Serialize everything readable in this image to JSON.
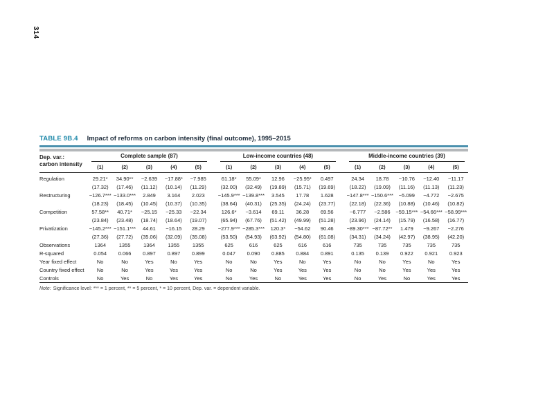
{
  "page": {
    "number": "314"
  },
  "colors": {
    "accent": "#1b87a8",
    "title": "#1d2b3a",
    "rule": "#4a90ad",
    "bar": "#b4b7ba"
  },
  "table": {
    "label": "TABLE 9B.4",
    "title": "Impact of reforms on carbon intensity (final outcome), 1995–2015",
    "dep_var_line1": "Dep. var.:",
    "dep_var_line2": "carbon intensity",
    "groups": [
      {
        "label": "Complete sample (87)",
        "columns": [
          "(1)",
          "(2)",
          "(3)",
          "(4)",
          "(5)"
        ]
      },
      {
        "label": "Low-income countries (48)",
        "columns": [
          "(1)",
          "(2)",
          "(3)",
          "(4)",
          "(5)"
        ]
      },
      {
        "label": "Middle-income countries (39)",
        "columns": [
          "(1)",
          "(2)",
          "(3)",
          "(4)",
          "(5)"
        ]
      }
    ],
    "rows": [
      {
        "label": "Regulation",
        "values": [
          "29.21*",
          "34.90**",
          "−2.639",
          "−17.88*",
          "−7.985",
          "61.18*",
          "55.09*",
          "12.96",
          "−25.95*",
          "0.497",
          "24.34",
          "18.78",
          "−10.76",
          "−12.40",
          "−11.17"
        ]
      },
      {
        "label": "",
        "values": [
          "(17.32)",
          "(17.46)",
          "(11.12)",
          "(10.14)",
          "(11.29)",
          "(32.00)",
          "(32.49)",
          "(19.89)",
          "(15.71)",
          "(19.69)",
          "(18.22)",
          "(19.09)",
          "(11.16)",
          "(11.13)",
          "(11.23)"
        ]
      },
      {
        "label": "Restructuring",
        "values": [
          "−126.7***",
          "−133.0***",
          "2.849",
          "3.164",
          "2.023",
          "−145.9***",
          "−139.8***",
          "3.545",
          "17.78",
          "1.628",
          "−147.8***",
          "−150.6***",
          "−5.099",
          "−4.772",
          "−2.675"
        ]
      },
      {
        "label": "",
        "values": [
          "(18.23)",
          "(18.45)",
          "(10.45)",
          "(10.37)",
          "(10.35)",
          "(38.64)",
          "(40.31)",
          "(25.35)",
          "(24.24)",
          "(23.77)",
          "(22.18)",
          "(22.36)",
          "(10.88)",
          "(10.46)",
          "(10.82)"
        ]
      },
      {
        "label": "Competition",
        "values": [
          "57.58**",
          "40.71*",
          "−25.15",
          "−25.33",
          "−22.34",
          "126.6*",
          "−3.614",
          "69.11",
          "36.28",
          "69.56",
          "−6.777",
          "−2.586",
          "−59.15***",
          "−54.66***",
          "−58.99***"
        ]
      },
      {
        "label": "",
        "values": [
          "(23.84)",
          "(23.48)",
          "(18.74)",
          "(18.64)",
          "(19.07)",
          "(65.94)",
          "(67.76)",
          "(51.42)",
          "(49.99)",
          "(51.28)",
          "(23.96)",
          "(24.14)",
          "(15.79)",
          "(16.58)",
          "(16.77)"
        ]
      },
      {
        "label": "Privatization",
        "values": [
          "−145.2***",
          "−151.1***",
          "44.61",
          "−16.15",
          "28.29",
          "−277.9***",
          "−285.3***",
          "120.3*",
          "−54.62",
          "90.46",
          "−89.30***",
          "−87.72**",
          "1.479",
          "−9.267",
          "−2.276"
        ]
      },
      {
        "label": "",
        "values": [
          "(27.36)",
          "(27.72)",
          "(35.06)",
          "(32.09)",
          "(35.08)",
          "(53.50)",
          "(54.93)",
          "(63.92)",
          "(54.80)",
          "(61.08)",
          "(34.31)",
          "(34.24)",
          "(42.97)",
          "(38.95)",
          "(42.20)"
        ]
      },
      {
        "label": "Observations",
        "values": [
          "1364",
          "1355",
          "1364",
          "1355",
          "1355",
          "625",
          "616",
          "625",
          "616",
          "616",
          "735",
          "735",
          "735",
          "735",
          "735"
        ]
      },
      {
        "label": "R-squared",
        "values": [
          "0.054",
          "0.066",
          "0.897",
          "0.897",
          "0.899",
          "0.047",
          "0.090",
          "0.885",
          "0.884",
          "0.891",
          "0.135",
          "0.139",
          "0.922",
          "0.921",
          "0.923"
        ]
      },
      {
        "label": "Year fixed effect",
        "values": [
          "No",
          "No",
          "Yes",
          "No",
          "Yes",
          "No",
          "No",
          "Yes",
          "No",
          "Yes",
          "No",
          "No",
          "Yes",
          "No",
          "Yes"
        ]
      },
      {
        "label": "Country fixed effect",
        "values": [
          "No",
          "No",
          "Yes",
          "Yes",
          "Yes",
          "No",
          "No",
          "Yes",
          "Yes",
          "Yes",
          "No",
          "No",
          "Yes",
          "Yes",
          "Yes"
        ]
      },
      {
        "label": "Controls",
        "values": [
          "No",
          "Yes",
          "No",
          "Yes",
          "Yes",
          "No",
          "Yes",
          "No",
          "Yes",
          "Yes",
          "No",
          "Yes",
          "No",
          "Yes",
          "Yes"
        ]
      }
    ],
    "note_label": "Note:",
    "note_text": "Significance level: *** = 1 percent, ** = 5 percent, * = 10 percent, Dep. var. = dependent variable."
  }
}
